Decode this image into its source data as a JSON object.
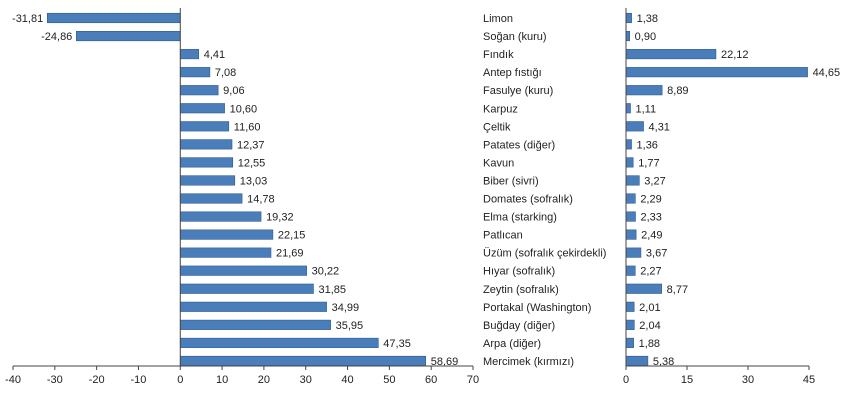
{
  "colors": {
    "bar_fill": "#4A7EBB",
    "bar_stroke": "#2F5A8F",
    "axis": "#444444",
    "text": "#222222"
  },
  "chart_data": [
    {
      "type": "bar",
      "orientation": "horizontal",
      "categories": [
        "Limon",
        "Soğan (kuru)",
        "Fındık",
        "Antep fıstığı",
        "Fasulye (kuru)",
        "Karpuz",
        "Çeltik",
        "Patates (diğer)",
        "Kavun",
        "Biber (sivri)",
        "Domates (sofralık)",
        "Elma (starking)",
        "Patlıcan",
        "Üzüm (sofralık çekirdekli)",
        "Hıyar (sofralık)",
        "Zeytin (sofralık)",
        "Portakal (Washington)",
        "Buğday (diğer)",
        "Arpa (diğer)",
        "Mercimek (kırmızı)"
      ],
      "values": [
        -31.81,
        -24.86,
        4.41,
        7.08,
        9.06,
        10.6,
        11.6,
        12.37,
        12.55,
        13.03,
        14.78,
        19.32,
        22.15,
        21.69,
        30.22,
        31.85,
        34.99,
        35.95,
        47.35,
        58.69
      ],
      "value_labels": [
        "-31,81",
        "-24,86",
        "4,41",
        "7,08",
        "9,06",
        "10,60",
        "11,60",
        "12,37",
        "12,55",
        "13,03",
        "14,78",
        "19,32",
        "22,15",
        "21,69",
        "30,22",
        "31,85",
        "34,99",
        "35,95",
        "47,35",
        "58,69"
      ],
      "xlim": [
        -40,
        70
      ],
      "xticks": [
        "-40",
        "-30",
        "-20",
        "-10",
        "0",
        "10",
        "20",
        "30",
        "40",
        "50",
        "60",
        "70"
      ],
      "title": "",
      "xlabel": "",
      "ylabel": ""
    },
    {
      "type": "bar",
      "orientation": "horizontal",
      "categories": [
        "Limon",
        "Soğan (kuru)",
        "Fındık",
        "Antep fıstığı",
        "Fasulye (kuru)",
        "Karpuz",
        "Çeltik",
        "Patates (diğer)",
        "Kavun",
        "Biber (sivri)",
        "Domates (sofralık)",
        "Elma (starking)",
        "Patlıcan",
        "Üzüm (sofralık çekirdekli)",
        "Hıyar (sofralık)",
        "Zeytin (sofralık)",
        "Portakal (Washington)",
        "Buğday (diğer)",
        "Arpa (diğer)",
        "Mercimek (kırmızı)"
      ],
      "values": [
        1.38,
        0.9,
        22.12,
        44.65,
        8.89,
        1.11,
        4.31,
        1.36,
        1.77,
        3.27,
        2.29,
        2.33,
        2.49,
        3.67,
        2.27,
        8.77,
        2.01,
        2.04,
        1.88,
        5.38
      ],
      "value_labels": [
        "1,38",
        "0,90",
        "22,12",
        "44,65",
        "8,89",
        "1,11",
        "4,31",
        "1,36",
        "1,77",
        "3,27",
        "2,29",
        "2,33",
        "2,49",
        "3,67",
        "2,27",
        "8,77",
        "2,01",
        "2,04",
        "1,88",
        "5,38"
      ],
      "xlim": [
        0,
        45
      ],
      "xticks": [
        "0",
        "15",
        "30",
        "45"
      ],
      "title": "",
      "xlabel": "",
      "ylabel": ""
    }
  ]
}
